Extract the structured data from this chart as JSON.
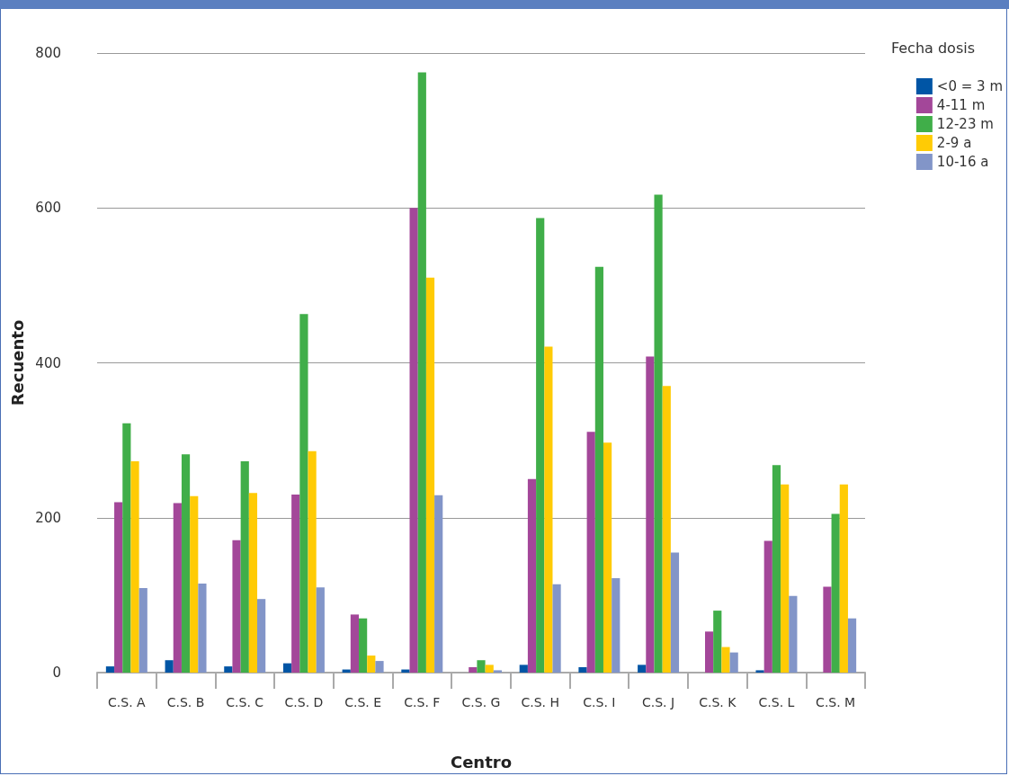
{
  "chart_data": {
    "type": "bar",
    "xlabel": "Centro",
    "ylabel": "Recuento",
    "legend_title": "Fecha dosis",
    "categories": [
      "C.S. A",
      "C.S. B",
      "C.S. C",
      "C.S. D",
      "C.S. E",
      "C.S. F",
      "C.S. G",
      "C.S. H",
      "C.S. I",
      "C.S. J",
      "C.S. K",
      "C.S. L",
      "C.S. M"
    ],
    "series": [
      {
        "name": "<0 = 3 m",
        "color": "#0055a5",
        "values": [
          8,
          16,
          8,
          12,
          4,
          4,
          null,
          10,
          7,
          10,
          null,
          3,
          null
        ]
      },
      {
        "name": "4-11 m",
        "color": "#a34799",
        "values": [
          220,
          219,
          171,
          230,
          75,
          600,
          7,
          250,
          311,
          408,
          53,
          170,
          111
        ]
      },
      {
        "name": "12-23 m",
        "color": "#40ae49",
        "values": [
          322,
          282,
          273,
          463,
          70,
          775,
          16,
          587,
          524,
          617,
          80,
          268,
          205
        ]
      },
      {
        "name": "2-9 a",
        "color": "#ffcb05",
        "values": [
          273,
          228,
          232,
          286,
          22,
          510,
          10,
          421,
          297,
          370,
          33,
          243,
          243
        ]
      },
      {
        "name": "10-16 a",
        "color": "#8295c8",
        "values": [
          109,
          115,
          95,
          110,
          15,
          229,
          3,
          114,
          122,
          155,
          26,
          99,
          70
        ]
      }
    ],
    "ylim": [
      0,
      800
    ],
    "yticks": [
      0,
      200,
      400,
      600,
      800
    ],
    "grid": "y",
    "legend": "top right"
  }
}
